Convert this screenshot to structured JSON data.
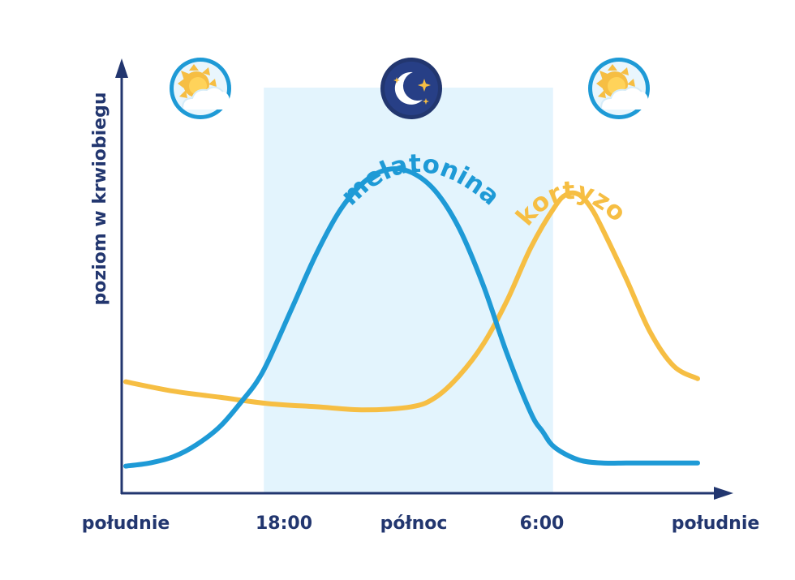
{
  "chart_data": {
    "type": "line",
    "title": "",
    "xlabel": "",
    "ylabel": "poziom w krwiobiegu",
    "categories": [
      "południe",
      "18:00",
      "północ",
      "6:00",
      "południe"
    ],
    "x_hours": [
      12,
      18,
      24,
      30,
      36
    ],
    "xlim": [
      12,
      36
    ],
    "ylim": [
      0,
      100
    ],
    "night_band": {
      "from": 18,
      "to": 30
    },
    "grid": false,
    "legend": "none",
    "series": [
      {
        "name": "melatonina",
        "color": "#1e9ad6",
        "x": [
          12,
          13,
          14,
          15,
          16,
          17,
          17.5,
          18,
          19,
          20,
          21,
          22,
          23,
          24,
          25,
          26,
          27,
          28,
          29,
          29.5,
          30,
          31,
          32,
          33,
          34,
          35,
          36
        ],
        "y": [
          4,
          5,
          7,
          11,
          17,
          26,
          31,
          38,
          55,
          72,
          86,
          95,
          99,
          98,
          92,
          80,
          62,
          40,
          21,
          15,
          10,
          6,
          5,
          5,
          5,
          5,
          5
        ]
      },
      {
        "name": "kortyzol",
        "color": "#f6be43",
        "x": [
          12,
          14,
          16,
          18,
          20,
          22,
          24,
          25,
          26,
          27,
          28,
          29,
          30,
          30.5,
          31,
          31.5,
          32,
          33,
          34,
          35,
          36
        ],
        "y": [
          31,
          28,
          26,
          24,
          23,
          22,
          23,
          26,
          33,
          43,
          57,
          74,
          87,
          91,
          91,
          87,
          80,
          64,
          47,
          36,
          32
        ]
      }
    ],
    "icons": [
      {
        "name": "sun-cloud-icon",
        "at": 16
      },
      {
        "name": "moon-stars-icon",
        "at": 24
      },
      {
        "name": "sun-cloud-icon",
        "at": 34
      }
    ]
  }
}
